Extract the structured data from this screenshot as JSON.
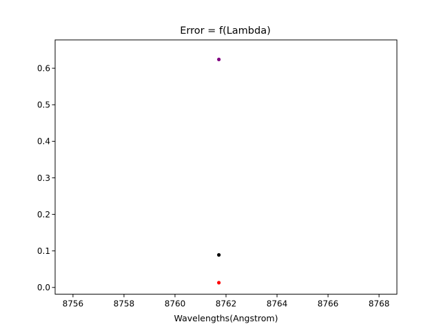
{
  "chart_data": {
    "type": "scatter",
    "title": "Error = f(Lambda)",
    "xlabel": "Wavelengths(Angstrom)",
    "ylabel": "",
    "xlim": [
      8755.3,
      8768.7
    ],
    "ylim": [
      -0.0185,
      0.6775
    ],
    "xticks": [
      8756,
      8758,
      8760,
      8762,
      8764,
      8766,
      8768
    ],
    "yticks": [
      0.0,
      0.1,
      0.2,
      0.3,
      0.4,
      0.5,
      0.6
    ],
    "ytick_labels": [
      "0.0",
      "0.1",
      "0.2",
      "0.3",
      "0.4",
      "0.5",
      "0.6"
    ],
    "grid": false,
    "points": [
      {
        "x": 8761.72,
        "y": 0.624,
        "color": "#800080"
      },
      {
        "x": 8761.72,
        "y": 0.089,
        "color": "#000000"
      },
      {
        "x": 8761.72,
        "y": 0.013,
        "color": "#ff0000"
      }
    ]
  }
}
